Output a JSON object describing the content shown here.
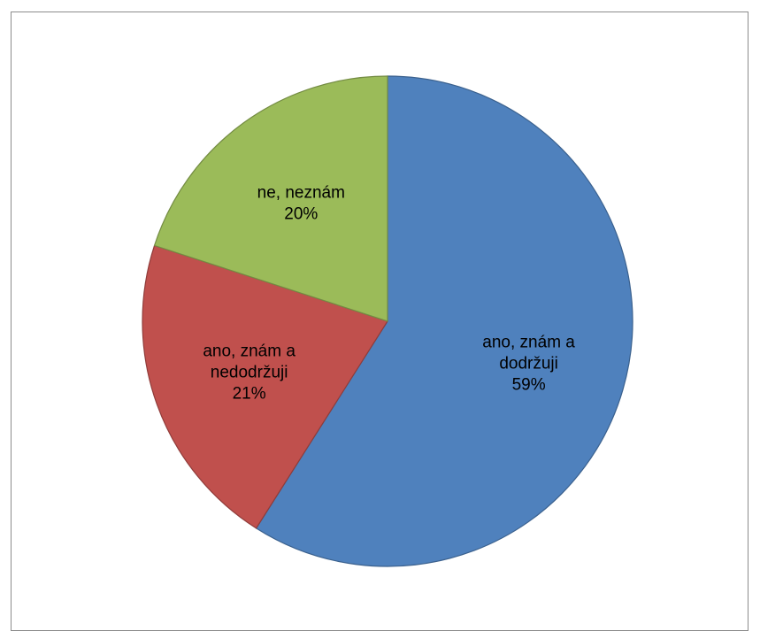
{
  "chart_data": {
    "type": "pie",
    "title": "",
    "legend": "none",
    "slices": [
      {
        "name": "ano, znám a dodržuji",
        "label_lines": [
          "ano, znám a",
          "dodržuji"
        ],
        "percent_label": "59%",
        "value": 59,
        "color": "#4F81BD"
      },
      {
        "name": "ano, znám a nedodržuji",
        "label_lines": [
          "ano, znám a",
          "nedodržuji"
        ],
        "percent_label": "21%",
        "value": 21,
        "color": "#C0504D"
      },
      {
        "name": "ne, neznám",
        "label_lines": [
          "ne, neznám"
        ],
        "percent_label": "20%",
        "value": 20,
        "color": "#9BBB59"
      }
    ]
  }
}
